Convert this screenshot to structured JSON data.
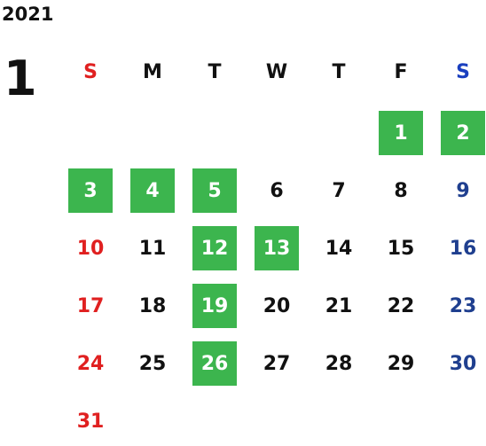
{
  "calendar": {
    "year": "2021",
    "month": "1",
    "weekdays": [
      "S",
      "M",
      "T",
      "W",
      "T",
      "F",
      "S"
    ],
    "weekday_colors": [
      "#e02020",
      "#111111",
      "#111111",
      "#111111",
      "#111111",
      "#111111",
      "#1a3fbf"
    ],
    "day_colors": {
      "sun": "#e02020",
      "weekday": "#111111",
      "sat": "#1f3f8f"
    },
    "highlight_color": "#3cb54e",
    "weeks": [
      [
        null,
        null,
        null,
        null,
        null,
        "1",
        "2"
      ],
      [
        "3",
        "4",
        "5",
        "6",
        "7",
        "8",
        "9"
      ],
      [
        "10",
        "11",
        "12",
        "13",
        "14",
        "15",
        "16"
      ],
      [
        "17",
        "18",
        "19",
        "20",
        "21",
        "22",
        "23"
      ],
      [
        "24",
        "25",
        "26",
        "27",
        "28",
        "29",
        "30"
      ],
      [
        "31",
        null,
        null,
        null,
        null,
        null,
        null
      ]
    ],
    "highlighted_days": [
      "1",
      "2",
      "3",
      "4",
      "5",
      "12",
      "13",
      "19",
      "26"
    ]
  }
}
